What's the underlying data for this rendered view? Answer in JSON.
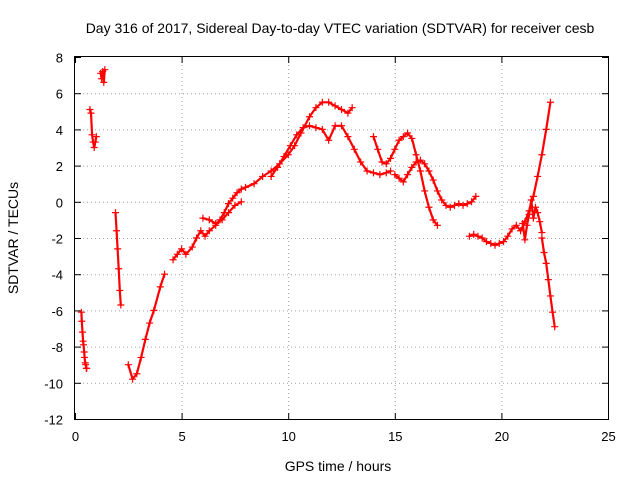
{
  "chart_data": {
    "type": "scatter",
    "title": "Day 316 of 2017, Sidereal Day-to-day VTEC variation (SDTVAR) for receiver cesb",
    "xlabel": "GPS time / hours",
    "ylabel": "SDTVAR / TECUs",
    "xlim": [
      0,
      25
    ],
    "ylim": [
      -12,
      8
    ],
    "xticks": [
      0,
      5,
      10,
      15,
      20,
      25
    ],
    "yticks": [
      -12,
      -10,
      -8,
      -6,
      -4,
      -2,
      0,
      2,
      4,
      6,
      8
    ],
    "xtick_labels": [
      "0",
      "5",
      "10",
      "15",
      "20",
      "25"
    ],
    "ytick_labels": [
      "-12",
      "-10",
      "-8",
      "-6",
      "-4",
      "-2",
      "0",
      "2",
      "4",
      "6",
      "8"
    ],
    "grid": true,
    "marker": "+",
    "color": "#ff0000",
    "series": [
      {
        "name": "seg-1",
        "x": [
          0.3,
          0.32,
          0.35,
          0.38,
          0.4,
          0.43,
          0.45,
          0.48,
          0.5,
          0.53,
          0.55
        ],
        "y": [
          -6.1,
          -6.6,
          -7.2,
          -7.7,
          -7.9,
          -8.3,
          -8.6,
          -8.9,
          -9.0,
          -9.2,
          -9.2
        ]
      },
      {
        "name": "seg-2",
        "x": [
          0.7,
          0.75,
          0.8,
          0.85,
          0.9,
          0.95,
          1.0
        ],
        "y": [
          5.1,
          4.9,
          3.7,
          3.3,
          3.0,
          3.3,
          3.6
        ]
      },
      {
        "name": "seg-3",
        "x": [
          1.2,
          1.25,
          1.3,
          1.35,
          1.4
        ],
        "y": [
          7.1,
          6.8,
          7.2,
          6.6,
          7.3
        ]
      },
      {
        "name": "seg-4",
        "x": [
          1.9,
          1.95,
          2.0,
          2.05,
          2.1,
          2.15
        ],
        "y": [
          -0.6,
          -1.6,
          -2.6,
          -3.7,
          -4.9,
          -5.7
        ]
      },
      {
        "name": "seg-5",
        "x": [
          2.5,
          2.7,
          2.9,
          3.1,
          3.3,
          3.5,
          3.7,
          4.0,
          4.2
        ],
        "y": [
          -9.0,
          -9.8,
          -9.5,
          -8.6,
          -7.6,
          -6.7,
          -6.0,
          -4.7,
          -4.0
        ]
      },
      {
        "name": "seg-6",
        "x": [
          4.6,
          4.8,
          5.0,
          5.2,
          5.5,
          5.7,
          5.9,
          6.1,
          6.3,
          6.6,
          6.8,
          7.0,
          7.2,
          7.4,
          7.6,
          7.8,
          8.0,
          8.4,
          8.8,
          9.2,
          9.6,
          10.0,
          10.3,
          10.6,
          11.0,
          11.3,
          11.6,
          11.9,
          12.2,
          12.5,
          12.8,
          13.0
        ],
        "y": [
          -3.2,
          -2.9,
          -2.6,
          -2.9,
          -2.5,
          -2.0,
          -1.6,
          -1.9,
          -1.6,
          -1.3,
          -1.0,
          -0.6,
          -0.1,
          0.2,
          0.5,
          0.7,
          0.8,
          1.0,
          1.4,
          1.7,
          2.1,
          2.6,
          3.1,
          3.8,
          4.7,
          5.2,
          5.5,
          5.5,
          5.3,
          5.1,
          4.9,
          5.2
        ]
      },
      {
        "name": "seg-7",
        "x": [
          6.0,
          6.3,
          6.6,
          6.9,
          7.2,
          7.5,
          7.8
        ],
        "y": [
          -0.9,
          -1.0,
          -1.2,
          -1.0,
          -0.6,
          -0.2,
          0.0
        ]
      },
      {
        "name": "seg-8",
        "x": [
          9.2,
          9.5,
          9.8,
          10.1,
          10.4,
          10.7,
          11.0,
          11.3,
          11.6,
          11.9,
          12.2,
          12.5,
          12.8,
          13.1,
          13.4,
          13.7,
          14.0,
          14.3,
          14.6,
          14.8
        ],
        "y": [
          1.4,
          1.9,
          2.5,
          3.1,
          3.7,
          4.1,
          4.2,
          4.1,
          4.0,
          3.4,
          4.2,
          4.2,
          3.6,
          2.9,
          2.2,
          1.7,
          1.6,
          1.5,
          1.6,
          1.7
        ]
      },
      {
        "name": "seg-9",
        "x": [
          14.0,
          14.2,
          14.4,
          14.6,
          14.8,
          15.0,
          15.2,
          15.4,
          15.6,
          15.8,
          16.0,
          16.2,
          16.4,
          16.6,
          16.8,
          17.0
        ],
        "y": [
          3.6,
          2.9,
          2.2,
          2.1,
          2.4,
          2.9,
          3.4,
          3.6,
          3.8,
          3.5,
          2.6,
          1.7,
          0.6,
          -0.3,
          -1.0,
          -1.3
        ]
      },
      {
        "name": "seg-10",
        "x": [
          15.0,
          15.2,
          15.4,
          15.6,
          15.8,
          16.0,
          16.2,
          16.4,
          16.6,
          16.8,
          17.0,
          17.2,
          17.4,
          17.6,
          17.8,
          18.0,
          18.2,
          18.4,
          18.6,
          18.8
        ],
        "y": [
          1.5,
          1.3,
          1.1,
          1.5,
          1.9,
          2.2,
          2.3,
          2.1,
          1.7,
          1.2,
          0.6,
          0.1,
          -0.2,
          -0.3,
          -0.2,
          -0.1,
          -0.2,
          -0.1,
          0.0,
          0.3
        ]
      },
      {
        "name": "seg-11",
        "x": [
          18.5,
          18.7,
          18.9,
          19.1,
          19.3,
          19.5,
          19.7,
          19.9,
          20.1,
          20.3,
          20.5,
          20.7,
          20.9,
          21.1,
          21.3,
          21.5,
          21.7,
          21.9,
          22.1,
          22.3
        ],
        "y": [
          -1.9,
          -1.8,
          -1.9,
          -2.0,
          -2.2,
          -2.3,
          -2.4,
          -2.3,
          -2.2,
          -1.9,
          -1.5,
          -1.3,
          -1.6,
          -1.1,
          -0.5,
          0.3,
          1.4,
          2.6,
          4.0,
          5.5
        ]
      },
      {
        "name": "seg-12",
        "x": [
          21.0,
          21.1,
          21.2,
          21.3,
          21.4,
          21.5,
          21.6,
          21.7,
          21.8,
          21.9
        ],
        "y": [
          -1.2,
          -2.1,
          -1.3,
          -0.7,
          0.1,
          -0.9,
          -0.3,
          -0.6,
          -1.1,
          -1.7
        ]
      },
      {
        "name": "seg-13",
        "x": [
          21.9,
          22.0,
          22.1,
          22.2,
          22.3,
          22.4,
          22.5
        ],
        "y": [
          -2.0,
          -2.8,
          -3.4,
          -4.3,
          -5.2,
          -6.1,
          -6.9
        ]
      }
    ]
  }
}
